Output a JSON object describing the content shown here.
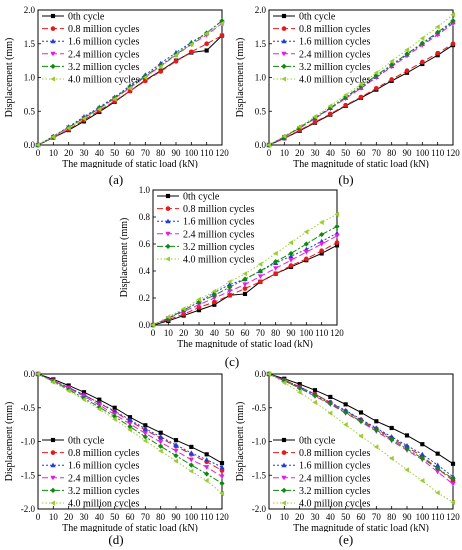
{
  "colors": [
    "#000000",
    "#e41a1c",
    "#1f3fd6",
    "#e51ee5",
    "#0b8a0b",
    "#9acd32"
  ],
  "chart_data": [
    {
      "type": "line",
      "caption": "(a)",
      "xlabel": "The magnitude of static load (kN)",
      "ylabel": "Displacement (mm)",
      "xlim": [
        0,
        120
      ],
      "ylim": [
        0,
        2.0
      ],
      "xticks": [
        "0",
        "10",
        "20",
        "30",
        "40",
        "50",
        "60",
        "70",
        "80",
        "90",
        "100",
        "110",
        "120"
      ],
      "yticks": [
        "0.0",
        "0.5",
        "1.0",
        "1.5",
        "2.0"
      ],
      "legend": "top-left",
      "x": [
        0,
        10,
        20,
        30,
        40,
        50,
        60,
        70,
        80,
        90,
        100,
        110,
        120
      ],
      "series": [
        {
          "name": "0th cycle",
          "values": [
            0.0,
            0.11,
            0.22,
            0.35,
            0.49,
            0.64,
            0.8,
            0.96,
            1.1,
            1.25,
            1.37,
            1.4,
            1.62
          ]
        },
        {
          "name": "0.8 million cycles",
          "values": [
            0.0,
            0.11,
            0.23,
            0.37,
            0.51,
            0.65,
            0.8,
            0.95,
            1.09,
            1.24,
            1.38,
            1.5,
            1.62
          ]
        },
        {
          "name": "1.6 million cycles",
          "values": [
            0.0,
            0.13,
            0.27,
            0.42,
            0.56,
            0.71,
            0.88,
            1.04,
            1.21,
            1.37,
            1.52,
            1.66,
            1.84
          ]
        },
        {
          "name": "2.4 million cycles",
          "values": [
            0.0,
            0.12,
            0.26,
            0.4,
            0.54,
            0.69,
            0.85,
            1.01,
            1.17,
            1.33,
            1.49,
            1.63,
            1.8
          ]
        },
        {
          "name": "3.2 million cycles",
          "values": [
            0.0,
            0.12,
            0.26,
            0.4,
            0.55,
            0.7,
            0.86,
            1.02,
            1.18,
            1.34,
            1.5,
            1.66,
            1.84
          ]
        },
        {
          "name": "4.0 million cycles",
          "values": [
            0.0,
            0.12,
            0.25,
            0.39,
            0.53,
            0.68,
            0.84,
            1.0,
            1.16,
            1.33,
            1.49,
            1.65,
            1.8
          ]
        }
      ]
    },
    {
      "type": "line",
      "caption": "(b)",
      "xlabel": "The magnitude of static load (kN)",
      "ylabel": "Displacement (mm)",
      "xlim": [
        0,
        120
      ],
      "ylim": [
        0,
        2.0
      ],
      "xticks": [
        "0",
        "10",
        "20",
        "30",
        "40",
        "50",
        "60",
        "70",
        "80",
        "90",
        "100",
        "110",
        "120"
      ],
      "yticks": [
        "0.0",
        "0.5",
        "1.0",
        "1.5",
        "2.0"
      ],
      "legend": "top-left",
      "x": [
        0,
        10,
        20,
        30,
        40,
        50,
        60,
        70,
        80,
        90,
        100,
        110,
        120
      ],
      "series": [
        {
          "name": "0th cycle",
          "values": [
            0.0,
            0.1,
            0.21,
            0.33,
            0.45,
            0.58,
            0.7,
            0.82,
            0.95,
            1.07,
            1.2,
            1.33,
            1.48
          ]
        },
        {
          "name": "0.8 million cycles",
          "values": [
            0.0,
            0.1,
            0.22,
            0.34,
            0.46,
            0.59,
            0.71,
            0.84,
            0.97,
            1.1,
            1.23,
            1.36,
            1.5
          ]
        },
        {
          "name": "1.6 million cycles",
          "values": [
            0.0,
            0.12,
            0.26,
            0.4,
            0.55,
            0.7,
            0.85,
            1.01,
            1.17,
            1.34,
            1.5,
            1.65,
            1.82
          ]
        },
        {
          "name": "2.4 million cycles",
          "values": [
            0.0,
            0.12,
            0.25,
            0.39,
            0.54,
            0.69,
            0.84,
            1.0,
            1.16,
            1.32,
            1.48,
            1.63,
            1.8
          ]
        },
        {
          "name": "3.2 million cycles",
          "values": [
            0.0,
            0.12,
            0.26,
            0.4,
            0.55,
            0.71,
            0.87,
            1.03,
            1.19,
            1.35,
            1.51,
            1.67,
            1.84
          ]
        },
        {
          "name": "4.0 million cycles",
          "values": [
            0.0,
            0.13,
            0.27,
            0.42,
            0.58,
            0.74,
            0.9,
            1.07,
            1.24,
            1.41,
            1.58,
            1.75,
            1.93
          ]
        }
      ]
    },
    {
      "type": "line",
      "caption": "(c)",
      "xlabel": "The magnitude of static load (kN)",
      "ylabel": "Displacement (mm)",
      "xlim": [
        0,
        120
      ],
      "ylim": [
        0,
        1.0
      ],
      "xticks": [
        "0",
        "10",
        "20",
        "30",
        "40",
        "50",
        "60",
        "70",
        "80",
        "90",
        "100",
        "110",
        "120"
      ],
      "yticks": [
        "0.0",
        "0.2",
        "0.4",
        "0.6",
        "0.8",
        "1.0"
      ],
      "legend": "top-left",
      "x": [
        0,
        10,
        20,
        30,
        40,
        50,
        60,
        70,
        80,
        90,
        100,
        110,
        120
      ],
      "series": [
        {
          "name": "0th cycle",
          "values": [
            0.0,
            0.03,
            0.07,
            0.11,
            0.15,
            0.22,
            0.23,
            0.32,
            0.38,
            0.43,
            0.48,
            0.53,
            0.59
          ]
        },
        {
          "name": "0.8 million cycles",
          "values": [
            0.0,
            0.04,
            0.08,
            0.13,
            0.17,
            0.22,
            0.27,
            0.32,
            0.38,
            0.44,
            0.49,
            0.55,
            0.61
          ]
        },
        {
          "name": "1.6 million cycles",
          "values": [
            0.0,
            0.05,
            0.11,
            0.17,
            0.24,
            0.3,
            0.34,
            0.4,
            0.46,
            0.51,
            0.56,
            0.62,
            0.68
          ]
        },
        {
          "name": "2.4 million cycles",
          "values": [
            0.0,
            0.05,
            0.1,
            0.15,
            0.2,
            0.25,
            0.3,
            0.36,
            0.42,
            0.48,
            0.54,
            0.6,
            0.66
          ]
        },
        {
          "name": "3.2 million cycles",
          "values": [
            0.0,
            0.05,
            0.11,
            0.17,
            0.22,
            0.28,
            0.34,
            0.4,
            0.47,
            0.53,
            0.6,
            0.67,
            0.73
          ]
        },
        {
          "name": "4.0 million cycles",
          "values": [
            0.0,
            0.06,
            0.12,
            0.19,
            0.25,
            0.32,
            0.38,
            0.45,
            0.53,
            0.61,
            0.69,
            0.76,
            0.82
          ]
        }
      ]
    },
    {
      "type": "line",
      "caption": "(d)",
      "xlabel": "The magnitude of static load (kN)",
      "ylabel": "Displacement (mm)",
      "xlim": [
        0,
        120
      ],
      "ylim": [
        -2.0,
        0.0
      ],
      "xticks": [
        "0",
        "10",
        "20",
        "30",
        "40",
        "50",
        "60",
        "70",
        "80",
        "90",
        "100",
        "110",
        "120"
      ],
      "yticks": [
        "-2.0",
        "-1.5",
        "-1.0",
        "-0.5",
        "0.0"
      ],
      "legend": "bottom-left",
      "x": [
        0,
        10,
        20,
        30,
        40,
        50,
        60,
        70,
        80,
        90,
        100,
        110,
        120
      ],
      "series": [
        {
          "name": "0th cycle",
          "values": [
            0.0,
            -0.08,
            -0.17,
            -0.27,
            -0.38,
            -0.5,
            -0.64,
            -0.76,
            -0.87,
            -0.98,
            -1.08,
            -1.19,
            -1.32
          ]
        },
        {
          "name": "0.8 million cycles",
          "values": [
            0.0,
            -0.1,
            -0.2,
            -0.31,
            -0.43,
            -0.56,
            -0.7,
            -0.83,
            -0.95,
            -1.07,
            -1.19,
            -1.3,
            -1.43
          ]
        },
        {
          "name": "1.6 million cycles",
          "values": [
            0.0,
            -0.1,
            -0.2,
            -0.31,
            -0.43,
            -0.55,
            -0.68,
            -0.81,
            -0.93,
            -1.05,
            -1.17,
            -1.27,
            -1.38
          ]
        },
        {
          "name": "2.4 million cycles",
          "values": [
            0.0,
            -0.1,
            -0.21,
            -0.33,
            -0.46,
            -0.6,
            -0.74,
            -0.88,
            -1.01,
            -1.14,
            -1.27,
            -1.38,
            -1.52
          ]
        },
        {
          "name": "3.2 million cycles",
          "values": [
            0.0,
            -0.11,
            -0.23,
            -0.36,
            -0.49,
            -0.63,
            -0.78,
            -0.93,
            -1.07,
            -1.21,
            -1.35,
            -1.48,
            -1.62
          ]
        },
        {
          "name": "4.0 million cycles",
          "values": [
            0.0,
            -0.12,
            -0.25,
            -0.38,
            -0.52,
            -0.67,
            -0.83,
            -0.99,
            -1.14,
            -1.29,
            -1.44,
            -1.58,
            -1.77
          ]
        }
      ]
    },
    {
      "type": "line",
      "caption": "(e)",
      "xlabel": "The magnitude of static load (kN)",
      "ylabel": "Displacement (mm)",
      "xlim": [
        0,
        120
      ],
      "ylim": [
        -2.0,
        0.0
      ],
      "xticks": [
        "0",
        "10",
        "20",
        "30",
        "40",
        "50",
        "60",
        "70",
        "80",
        "90",
        "100",
        "110",
        "120"
      ],
      "yticks": [
        "-2.0",
        "-1.5",
        "-1.0",
        "-0.5",
        "0.0"
      ],
      "legend": "bottom-left",
      "x": [
        0,
        10,
        20,
        30,
        40,
        50,
        60,
        70,
        80,
        90,
        100,
        110,
        120
      ],
      "series": [
        {
          "name": "0th cycle",
          "values": [
            0.0,
            -0.07,
            -0.15,
            -0.24,
            -0.34,
            -0.45,
            -0.57,
            -0.7,
            -0.8,
            -0.91,
            -1.04,
            -1.18,
            -1.33
          ]
        },
        {
          "name": "0.8 million cycles",
          "values": [
            0.0,
            -0.09,
            -0.19,
            -0.3,
            -0.42,
            -0.55,
            -0.68,
            -0.81,
            -0.95,
            -1.08,
            -1.22,
            -1.4,
            -1.58
          ]
        },
        {
          "name": "1.6 million cycles",
          "values": [
            0.0,
            -0.09,
            -0.19,
            -0.3,
            -0.42,
            -0.54,
            -0.67,
            -0.8,
            -0.93,
            -1.06,
            -1.19,
            -1.35,
            -1.52
          ]
        },
        {
          "name": "2.4 million cycles",
          "values": [
            0.0,
            -0.1,
            -0.21,
            -0.33,
            -0.45,
            -0.58,
            -0.71,
            -0.85,
            -0.99,
            -1.13,
            -1.27,
            -1.45,
            -1.63
          ]
        },
        {
          "name": "3.2 million cycles",
          "values": [
            0.0,
            -0.1,
            -0.21,
            -0.32,
            -0.44,
            -0.57,
            -0.7,
            -0.83,
            -0.97,
            -1.11,
            -1.25,
            -1.4,
            -1.55
          ]
        },
        {
          "name": "4.0 million cycles",
          "values": [
            0.0,
            -0.13,
            -0.27,
            -0.42,
            -0.58,
            -0.75,
            -0.92,
            -1.08,
            -1.25,
            -1.42,
            -1.58,
            -1.76,
            -1.9
          ]
        }
      ]
    }
  ]
}
